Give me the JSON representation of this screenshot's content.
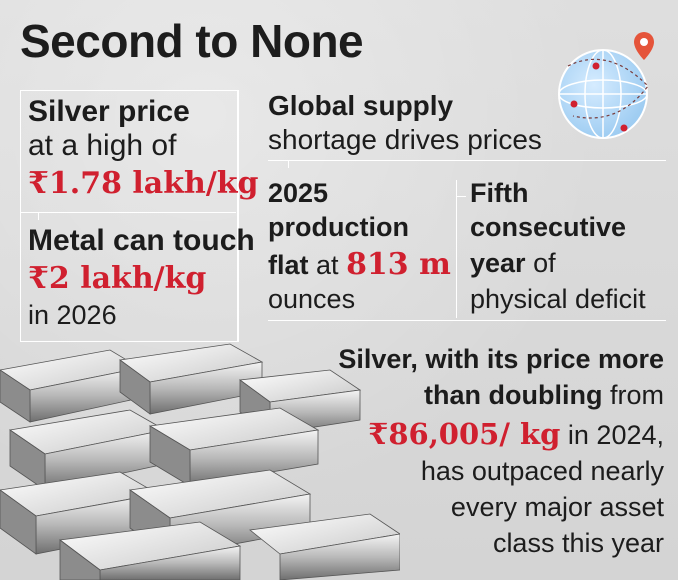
{
  "headline": "Second to None",
  "left": {
    "price_l1": "Silver price",
    "price_l2": "at a high of",
    "price_value": "₹1.78 lakh/kg",
    "touch_l1": "Metal can touch",
    "touch_value": "₹2 lakh/kg",
    "touch_l3": "in 2026"
  },
  "supply": {
    "l1": "Global supply",
    "l2": "shortage drives prices"
  },
  "production": {
    "l1": "2025",
    "l2": "production",
    "l3_a": "flat",
    "l3_b": "at",
    "l3_value": "813 m",
    "l4": "ounces"
  },
  "deficit": {
    "l1": "Fifth",
    "l2": "consecutive",
    "l3_a": "year",
    "l3_b": "of",
    "l4": "physical deficit"
  },
  "summary": {
    "l1": "Silver, with its price more",
    "l2_a": "than doubling",
    "l2_b": "from",
    "l3_value": "₹86,005/ kg",
    "l3_b": "in 2024,",
    "l4": "has outpaced nearly",
    "l5": "every major asset",
    "l6": "class this year"
  },
  "icons": {
    "globe": "globe-with-location-pin-icon",
    "bars": "silver-bars-illustration"
  },
  "colors": {
    "accent_red": "#d0202f",
    "text_dark": "#1c1c1c",
    "background": "#d9d9d9"
  }
}
